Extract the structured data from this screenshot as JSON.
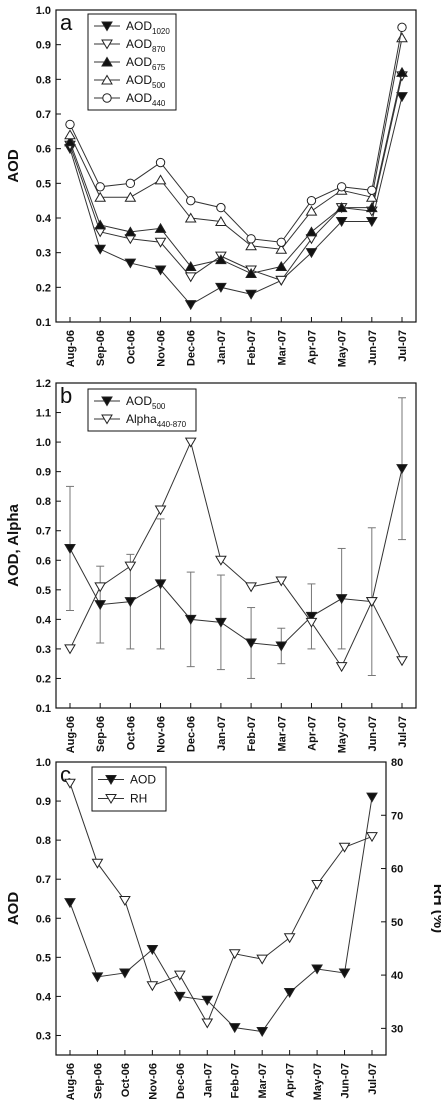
{
  "chart_data": [
    {
      "type": "line",
      "panel_label": "a",
      "categories": [
        "Aug-06",
        "Sep-06",
        "Oct-06",
        "Nov-06",
        "Dec-06",
        "Jan-07",
        "Feb-07",
        "Mar-07",
        "Apr-07",
        "May-07",
        "Jun-07",
        "Jul-07"
      ],
      "ylabel": "AOD",
      "ylim": [
        0.1,
        1.0
      ],
      "yticks": [
        "0.1",
        "0.2",
        "0.3",
        "0.4",
        "0.5",
        "0.6",
        "0.7",
        "0.8",
        "0.9",
        "1.0"
      ],
      "legend_position": "top-left",
      "series": [
        {
          "name": "AOD",
          "sub": "1020",
          "marker": "triangle-down-filled",
          "values": [
            0.6,
            0.31,
            0.27,
            0.25,
            0.15,
            0.2,
            0.18,
            0.22,
            0.3,
            0.39,
            0.39,
            0.75
          ]
        },
        {
          "name": "AOD",
          "sub": "870",
          "marker": "triangle-down-open",
          "values": [
            0.61,
            0.36,
            0.34,
            0.33,
            0.23,
            0.29,
            0.25,
            0.22,
            0.34,
            0.43,
            0.42,
            0.81
          ]
        },
        {
          "name": "AOD",
          "sub": "675",
          "marker": "triangle-up-filled",
          "values": [
            0.62,
            0.38,
            0.36,
            0.37,
            0.26,
            0.28,
            0.24,
            0.26,
            0.36,
            0.43,
            0.43,
            0.82
          ]
        },
        {
          "name": "AOD",
          "sub": "500",
          "marker": "triangle-up-open",
          "values": [
            0.64,
            0.46,
            0.46,
            0.51,
            0.4,
            0.39,
            0.32,
            0.31,
            0.42,
            0.48,
            0.46,
            0.92
          ]
        },
        {
          "name": "AOD",
          "sub": "440",
          "marker": "circle-open",
          "values": [
            0.67,
            0.49,
            0.5,
            0.56,
            0.45,
            0.43,
            0.34,
            0.33,
            0.45,
            0.49,
            0.48,
            0.95
          ]
        }
      ]
    },
    {
      "type": "line",
      "panel_label": "b",
      "categories": [
        "Aug-06",
        "Sep-06",
        "Oct-06",
        "Nov-06",
        "Dec-06",
        "Jan-07",
        "Feb-07",
        "Mar-07",
        "Apr-07",
        "May-07",
        "Jun-07",
        "Jul-07"
      ],
      "ylabel": "AOD, Alpha",
      "ylim": [
        0.1,
        1.2
      ],
      "yticks": [
        "0.1",
        "0.2",
        "0.3",
        "0.4",
        "0.5",
        "0.6",
        "0.7",
        "0.8",
        "0.9",
        "1.0",
        "1.1",
        "1.2"
      ],
      "legend_position": "top-left",
      "series": [
        {
          "name": "AOD",
          "sub": "500",
          "marker": "triangle-down-filled",
          "values": [
            0.64,
            0.45,
            0.46,
            0.52,
            0.4,
            0.39,
            0.32,
            0.31,
            0.41,
            0.47,
            0.46,
            0.91
          ],
          "error_low": [
            0.43,
            0.32,
            0.3,
            0.3,
            0.24,
            0.23,
            0.2,
            0.25,
            0.3,
            0.3,
            0.21,
            0.67
          ],
          "error_high": [
            0.85,
            0.58,
            0.62,
            0.74,
            0.56,
            0.55,
            0.44,
            0.37,
            0.52,
            0.64,
            0.71,
            1.15
          ]
        },
        {
          "name": "Alpha",
          "sub": "440-870",
          "marker": "triangle-down-open",
          "values": [
            0.3,
            0.51,
            0.58,
            0.77,
            1.0,
            0.6,
            0.51,
            0.53,
            0.39,
            0.24,
            0.46,
            0.26
          ]
        }
      ]
    },
    {
      "type": "line",
      "panel_label": "c",
      "categories": [
        "Aug-06",
        "Sep-06",
        "Oct-06",
        "Nov-06",
        "Dec-06",
        "Jan-07",
        "Feb-07",
        "Mar-07",
        "Apr-07",
        "May-07",
        "Jun-07",
        "Jul-07"
      ],
      "ylabel": "AOD",
      "ylim": [
        0.25,
        1.0
      ],
      "yticks": [
        "0.3",
        "0.4",
        "0.5",
        "0.6",
        "0.7",
        "0.8",
        "0.9",
        "1.0"
      ],
      "y2label": "RH (%)",
      "y2lim": [
        25,
        80
      ],
      "y2ticks": [
        "30",
        "40",
        "50",
        "60",
        "70",
        "80"
      ],
      "legend_position": "top-left",
      "series": [
        {
          "name": "AOD",
          "sub": "",
          "marker": "triangle-down-filled",
          "axis": "left",
          "values": [
            0.64,
            0.45,
            0.46,
            0.52,
            0.4,
            0.39,
            0.32,
            0.31,
            0.41,
            0.47,
            0.46,
            0.91
          ]
        },
        {
          "name": "RH",
          "sub": "",
          "marker": "triangle-down-open",
          "axis": "right",
          "values": [
            76,
            61,
            54,
            38,
            40,
            31,
            44,
            43,
            47,
            57,
            64,
            66
          ]
        }
      ]
    }
  ]
}
